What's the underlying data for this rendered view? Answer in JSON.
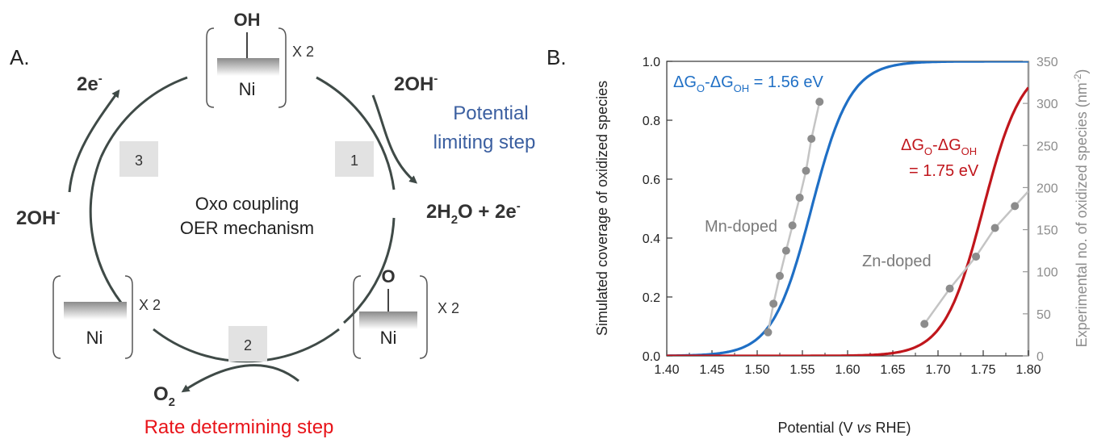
{
  "panel_a": {
    "label": "A.",
    "center_text": [
      "Oxo coupling",
      "OER mechanism"
    ],
    "multiplier": "X 2",
    "species": {
      "oh_ligand": "OH",
      "o_ligand": "O",
      "metal": "Ni"
    },
    "steps": [
      "1",
      "2",
      "3"
    ],
    "reagents": {
      "in_step1": "2OH",
      "in_step1_sup": "-",
      "out_step1_a": "2H",
      "out_step1_sub": "2",
      "out_step1_b": "O + 2e",
      "out_step1_sup": "-",
      "out_step2": "O",
      "out_step2_sub": "2",
      "in_step3": "2OH",
      "in_step3_sup": "-",
      "out_step3": "2e",
      "out_step3_sup": "-"
    },
    "potential_limiting_step": [
      "Potential",
      "limiting step"
    ],
    "rate_determining_step": "Rate determining step",
    "colors": {
      "arc": "#3f4a47",
      "plim": "#3b5fa0",
      "rds": "#e8141a",
      "stepbox": "#e2e2e2"
    }
  },
  "chart_data": {
    "type": "line",
    "panel_label": "B.",
    "xlabel": {
      "a": "Potential (V ",
      "b": "vs",
      "c": " RHE)"
    },
    "ylabel_left": "Simulated coverage of oxidized species",
    "ylabel_right": {
      "a": "Experimental no. of oxidized species (nm",
      "sup": "-2",
      "b": ")"
    },
    "xlim": [
      1.4,
      1.8
    ],
    "ylim_left": [
      0.0,
      1.0
    ],
    "ylim_right": [
      0,
      350
    ],
    "x_ticks": [
      "1.40",
      "1.45",
      "1.50",
      "1.55",
      "1.60",
      "1.65",
      "1.70",
      "1.75",
      "1.80"
    ],
    "y_left_ticks": [
      "0.0",
      "0.2",
      "0.4",
      "0.6",
      "0.8",
      "1.0"
    ],
    "y_right_ticks": [
      "0",
      "50",
      "100",
      "150",
      "200",
      "250",
      "300",
      "350"
    ],
    "annotations": {
      "mn_label": "Mn-doped",
      "zn_label": "Zn-doped",
      "blue_label": {
        "a": "ΔG",
        "sub1": "O",
        "b": "-ΔG",
        "sub2": "OH",
        "c": " = 1.56 eV"
      },
      "red_label": {
        "a": "ΔG",
        "sub1": "O",
        "b": "-ΔG",
        "sub2": "OH",
        "line2": "= 1.75 eV"
      }
    },
    "series": [
      {
        "color": "#1f6fc5",
        "axis": "left",
        "kind": "simulated",
        "center": 1.56,
        "width": 0.0215
      },
      {
        "color": "#c0161c",
        "axis": "left",
        "kind": "simulated",
        "center": 1.75,
        "width": 0.0215
      },
      {
        "color": "#8c8c8c",
        "axis": "right",
        "kind": "experimental",
        "group": "Mn-doped",
        "points": [
          [
            1.512,
            28
          ],
          [
            1.518,
            62
          ],
          [
            1.525,
            95
          ],
          [
            1.532,
            125
          ],
          [
            1.539,
            155
          ],
          [
            1.547,
            188
          ],
          [
            1.554,
            220
          ],
          [
            1.56,
            258
          ],
          [
            1.569,
            302
          ]
        ]
      },
      {
        "color": "#8c8c8c",
        "axis": "right",
        "kind": "experimental",
        "group": "Zn-doped",
        "points": [
          [
            1.685,
            38
          ],
          [
            1.713,
            80
          ],
          [
            1.742,
            118
          ],
          [
            1.763,
            152
          ],
          [
            1.785,
            178
          ]
        ]
      }
    ]
  }
}
